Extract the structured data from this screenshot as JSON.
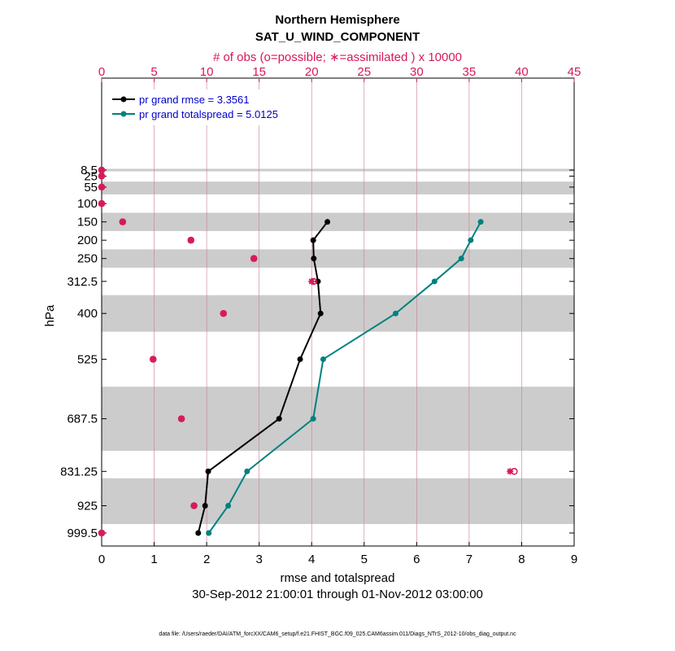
{
  "chart_data": {
    "type": "line",
    "title": "Northern Hemisphere",
    "subtitle": "SAT_U_WIND_COMPONENT",
    "top_axis_label": "# of obs (o=possible; ∗=assimilated ) x 10000",
    "xlabel": "rmse and totalspread",
    "ylabel": "hPa",
    "date_range": "30-Sep-2012 21:00:01 through 01-Nov-2012 03:00:00",
    "footnote": "data file: /Users/raeder/DAI/ATM_forcXX/CAM6_setup/f.e21.FHIST_BGC.f09_025.CAM6assim.011/Diags_NTrS_2012-10/obs_diag_output.nc",
    "xlim": [
      0,
      9
    ],
    "x_ticks": [
      "0",
      "1",
      "2",
      "3",
      "4",
      "5",
      "6",
      "7",
      "8",
      "9"
    ],
    "top_xlim": [
      0,
      45
    ],
    "top_ticks": [
      "0",
      "5",
      "10",
      "15",
      "20",
      "25",
      "30",
      "35",
      "40",
      "45"
    ],
    "levels": [
      8.5,
      25,
      55,
      100,
      150,
      200,
      250,
      312.5,
      400,
      525,
      687.5,
      831.25,
      925,
      999.5
    ],
    "level_labels": [
      "8.5",
      "25",
      "55",
      "100",
      "150",
      "200",
      "250",
      "312.5",
      "400",
      "525",
      "687.5",
      "831.25",
      "925",
      "999.5"
    ],
    "shaded_bands_hPa": [
      [
        5,
        12
      ],
      [
        40,
        75
      ],
      [
        125,
        175
      ],
      [
        225,
        275
      ],
      [
        350,
        450
      ],
      [
        600,
        775
      ],
      [
        850,
        975
      ]
    ],
    "legend": {
      "position": "top-left",
      "entries": [
        "pr grand rmse = 3.3561",
        "pr grand totalspread = 5.0125"
      ]
    },
    "series": [
      {
        "name": "pr grand rmse = 3.3561",
        "color": "#000000",
        "levels": [
          150,
          200,
          250,
          312.5,
          400,
          525,
          687.5,
          831.25,
          925,
          999.5
        ],
        "values": [
          4.3,
          4.03,
          4.04,
          4.12,
          4.17,
          3.78,
          3.38,
          2.03,
          1.97,
          1.84
        ]
      },
      {
        "name": "pr grand totalspread = 5.0125",
        "color": "#008080",
        "levels": [
          150,
          200,
          250,
          312.5,
          400,
          525,
          687.5,
          831.25,
          925,
          999.5
        ],
        "values": [
          7.22,
          7.03,
          6.85,
          6.34,
          5.6,
          4.22,
          4.03,
          2.77,
          2.41,
          2.04
        ]
      }
    ],
    "obs_counts": {
      "color": "#d6185a",
      "levels": [
        8.5,
        25,
        55,
        100,
        150,
        200,
        250,
        312.5,
        400,
        525,
        687.5,
        831.25,
        925,
        999.5
      ],
      "possible": [
        0,
        0,
        0,
        0,
        2.0,
        8.5,
        14.5,
        20.2,
        11.6,
        4.9,
        7.6,
        39.3,
        8.8,
        0
      ],
      "assimilated": [
        0,
        0,
        0,
        0,
        2.0,
        8.5,
        14.5,
        20.0,
        11.6,
        4.9,
        7.6,
        38.9,
        8.8,
        0
      ]
    }
  }
}
